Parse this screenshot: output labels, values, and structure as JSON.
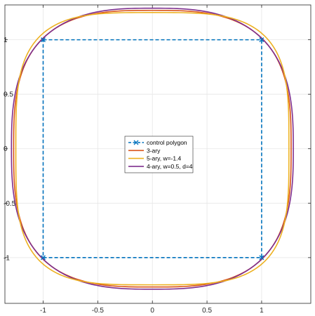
{
  "chart_data": {
    "type": "line",
    "title": "",
    "xlabel": "",
    "ylabel": "",
    "xlim": [
      -1.35,
      1.45
    ],
    "ylim": [
      -1.42,
      1.32
    ],
    "xticks": [
      -1,
      -0.5,
      0,
      0.5,
      1
    ],
    "xtick_labels": [
      "-1",
      "-0.5",
      "0",
      "0.5",
      "1"
    ],
    "yticks": [
      -1,
      -0.5,
      0,
      0.5,
      1
    ],
    "ytick_labels": [
      "-1",
      "-0.5",
      "0",
      "0.5",
      "1"
    ],
    "grid": true,
    "legend_position": "center",
    "series": [
      {
        "name": "control polygon",
        "color": "#0072bd",
        "style": "dashed",
        "marker": "x",
        "x": [
          -1,
          1,
          1,
          -1,
          -1
        ],
        "y": [
          1,
          1,
          -1,
          -1,
          1
        ]
      },
      {
        "name": "3-ary",
        "color": "#d95319",
        "style": "solid",
        "superellipse": {
          "rx": 1.27,
          "ry": 1.27,
          "n": 3.0
        }
      },
      {
        "name": "5-ary, w=-1.4",
        "color": "#edb120",
        "style": "solid",
        "superellipse": {
          "rx": 1.25,
          "ry": 1.25,
          "n": 3.6
        }
      },
      {
        "name": "4-ary, w=0.5, d=4",
        "color": "#7e2f8e",
        "style": "solid",
        "superellipse": {
          "rx": 1.29,
          "ry": 1.29,
          "n": 2.8
        }
      }
    ]
  }
}
